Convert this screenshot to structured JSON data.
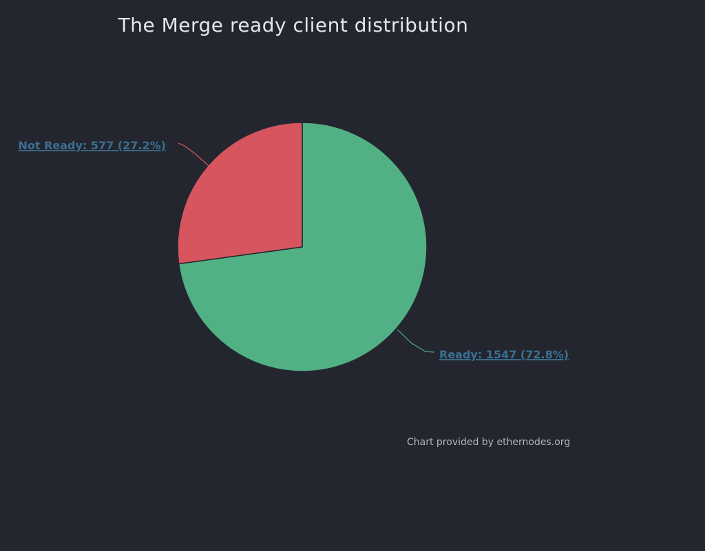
{
  "chart_data": {
    "type": "pie",
    "title": "The Merge ready client distribution",
    "slices": [
      {
        "name": "Ready",
        "value": 1547,
        "percent": 72.8,
        "label": "Ready: 1547 (72.8%)",
        "color": "#52b085",
        "label_color": "#3a6f92"
      },
      {
        "name": "Not Ready",
        "value": 577,
        "percent": 27.2,
        "label": "Not Ready: 577 (27.2%)",
        "color": "#d7555f",
        "label_color": "#3a6f92"
      }
    ]
  },
  "credit": "Chart provided by ethernodes.org",
  "colors": {
    "background": "#24262f",
    "title": "#e4e6ec",
    "credit": "#b3b5bd",
    "slice_border": "#24262f"
  }
}
